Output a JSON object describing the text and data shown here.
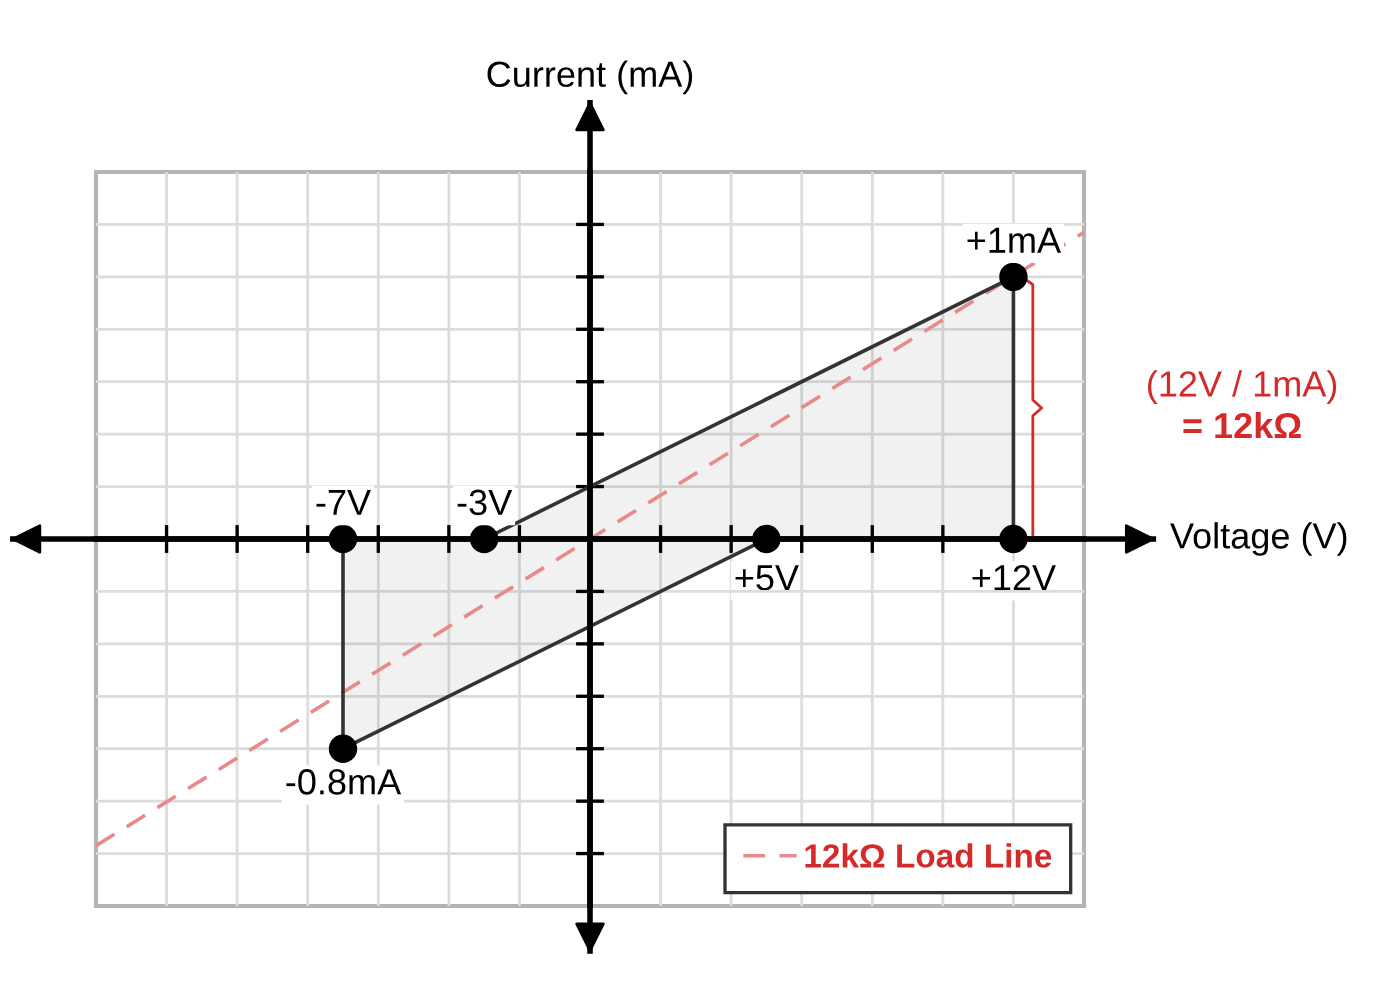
{
  "chart_data": {
    "type": "scatter",
    "xlabel": "Voltage (V)",
    "ylabel": "Current (mA)",
    "xlim": [
      -14,
      14
    ],
    "ylim": [
      -1.4,
      1.4
    ],
    "xticks": [
      {
        "value": -12,
        "label": null
      },
      {
        "value": -10,
        "label": null
      },
      {
        "value": -8,
        "label": null
      },
      {
        "value": -6,
        "label": null
      },
      {
        "value": -4,
        "label": null
      },
      {
        "value": -2,
        "label": null
      },
      {
        "value": 0,
        "label": null
      },
      {
        "value": 2,
        "label": null
      },
      {
        "value": 4,
        "label": null
      },
      {
        "value": 5,
        "label": "+5V"
      },
      {
        "value": 6,
        "label": null
      },
      {
        "value": 8,
        "label": null
      },
      {
        "value": 10,
        "label": null
      },
      {
        "value": 12,
        "label": "+12V"
      }
    ],
    "yticks": [
      {
        "value": -1.2,
        "label": null
      },
      {
        "value": -1.0,
        "label": null
      },
      {
        "value": -0.8,
        "label": null
      },
      {
        "value": -0.6,
        "label": null
      },
      {
        "value": -0.4,
        "label": null
      },
      {
        "value": -0.2,
        "label": null
      },
      {
        "value": 0,
        "label": null
      },
      {
        "value": 0.2,
        "label": null
      },
      {
        "value": 0.4,
        "label": null
      },
      {
        "value": 0.6,
        "label": null
      },
      {
        "value": 0.8,
        "label": null
      },
      {
        "value": 1.0,
        "label": null
      },
      {
        "value": 1.2,
        "label": null
      }
    ],
    "tick_labels": "x",
    "grid": true,
    "legend": "bottom right",
    "series": [
      {
        "type": "area",
        "color": "#333333",
        "x": [
          -7,
          -3,
          12,
          12,
          5,
          -7,
          -7
        ],
        "values": [
          0,
          0,
          1,
          0,
          0,
          -0.8,
          0
        ]
      },
      {
        "type": "line",
        "name": "12kΩ Load Line",
        "color": "#e88a8a",
        "line_style": "dashed",
        "x": [
          -14,
          14
        ],
        "values": [
          -1.17,
          1.17
        ]
      },
      {
        "color": "#000000",
        "marker": "circle",
        "x": [
          -7,
          -3,
          5,
          12,
          12,
          -7
        ],
        "values": [
          0,
          0,
          0,
          0,
          1,
          -0.8
        ],
        "value_labels": [
          null,
          null,
          null,
          null,
          "+1mA",
          "-0.8mA"
        ]
      }
    ],
    "annotations": [
      {
        "text": "-7V",
        "x": -7,
        "y": 0
      },
      {
        "text": "-3V",
        "x": -3,
        "y": 0
      },
      "(12V / 1mA)\n= 12kΩ"
    ]
  }
}
